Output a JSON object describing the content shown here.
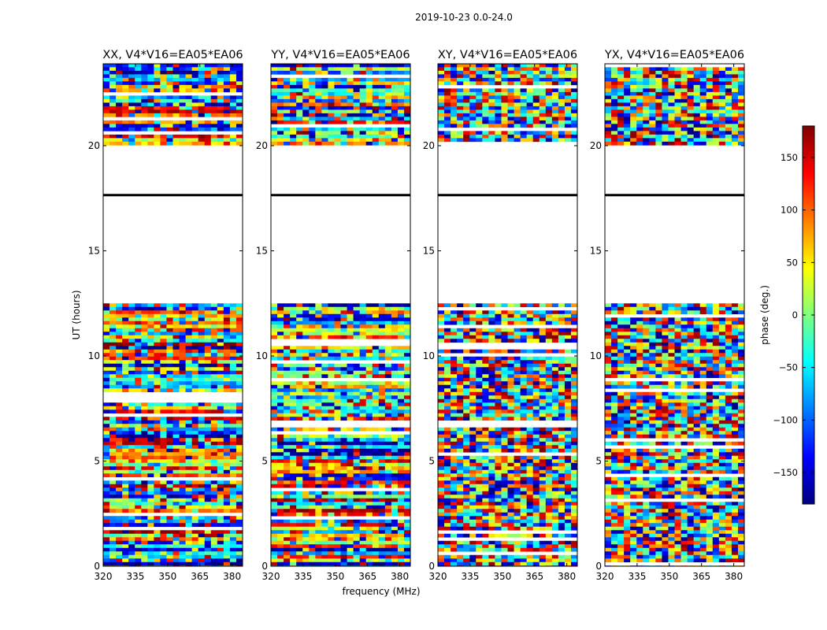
{
  "figure": {
    "suptitle": "2019-10-23 0.0-24.0",
    "xlabel": "frequency (MHz)",
    "ylabel": "UT (hours)",
    "colorbar_label": "phase (deg.)"
  },
  "chart_data": {
    "type": "heatmap",
    "title": "2019-10-23 0.0-24.0",
    "xlabel": "frequency (MHz)",
    "ylabel": "UT (hours)",
    "xlim": [
      320,
      381.5
    ],
    "ylim": [
      0,
      24
    ],
    "xticks": [
      320,
      335,
      350,
      365,
      380
    ],
    "yticks": [
      0,
      5,
      10,
      15,
      20
    ],
    "colorbar": {
      "label": "phase (deg.)",
      "range": [
        -180,
        180
      ],
      "ticks": [
        150,
        100,
        50,
        0,
        -50,
        -100,
        -150
      ],
      "tick_labels": [
        "150",
        "100",
        "50",
        "0",
        "−50",
        "−100",
        "−150"
      ],
      "colormap": "jet",
      "colors": [
        "#00007f",
        "#0000ff",
        "#007fff",
        "#00ffff",
        "#7fff7f",
        "#ffff00",
        "#ff7f00",
        "#ff0000",
        "#7f0000"
      ]
    },
    "panels": [
      {
        "title": "XX, V4*V16=EA05*EA06"
      },
      {
        "title": "YY, V4*V16=EA05*EA06"
      },
      {
        "title": "XY, V4*V16=EA05*EA06"
      },
      {
        "title": "YX, V4*V16=EA05*EA06"
      }
    ],
    "data_gaps_ut": [
      [
        12.5,
        17.6
      ],
      [
        17.7,
        20.1
      ]
    ],
    "flagged_line_ut": 17.65,
    "data_end_ut": 24
  }
}
